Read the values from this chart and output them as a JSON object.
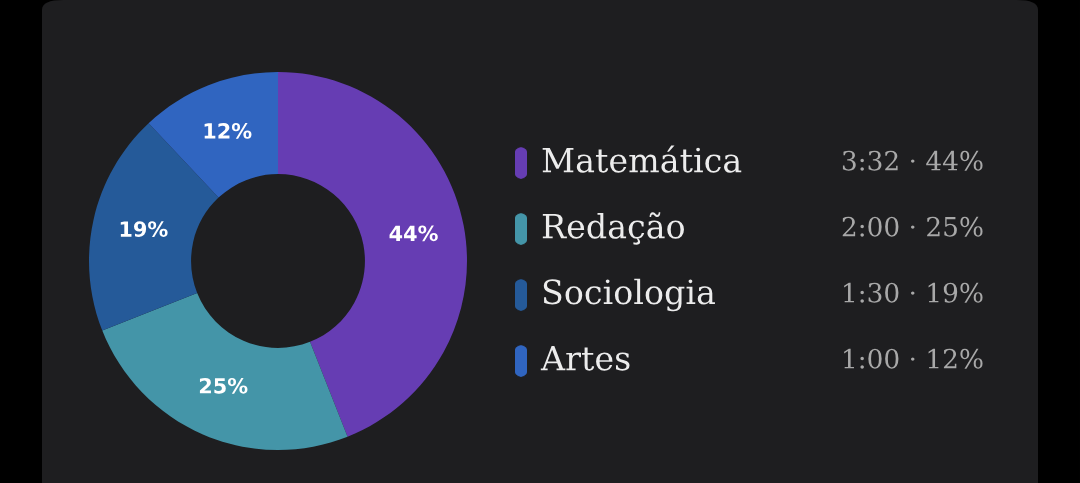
{
  "chart_data": {
    "type": "donut",
    "categories": [
      "Matemática",
      "Redação",
      "Sociologia",
      "Artes"
    ],
    "values": [
      44,
      25,
      19,
      12
    ],
    "colors": [
      "#663db3",
      "#4495a8",
      "#255a99",
      "#3065c0"
    ],
    "value_labels": [
      "44%",
      "25%",
      "19%",
      "12%"
    ],
    "legend": "right",
    "annotations": [
      "3:32 · 44%",
      "2:00 · 25%",
      "1:30 · 19%",
      "1:00 · 12%"
    ]
  }
}
